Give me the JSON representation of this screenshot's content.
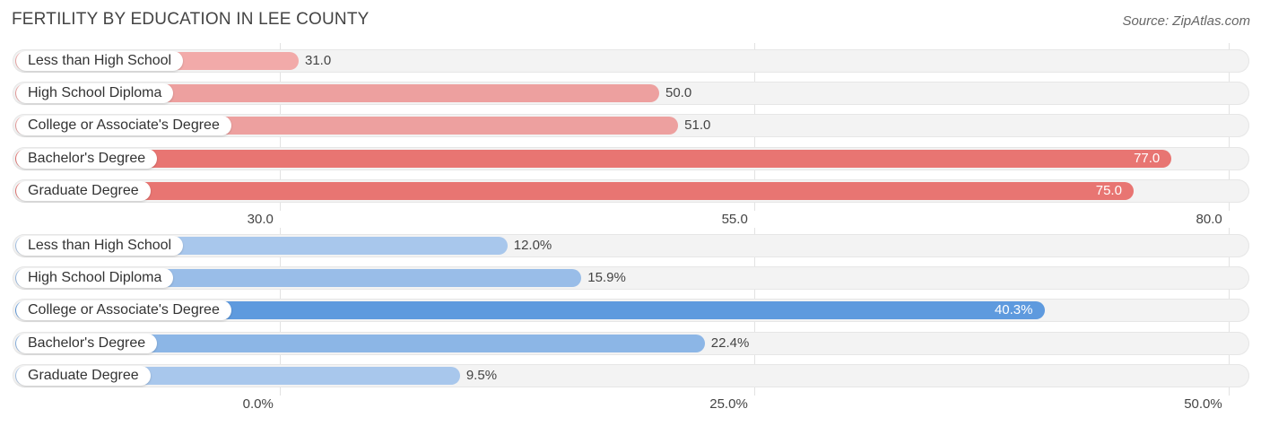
{
  "title": "FERTILITY BY EDUCATION IN LEE COUNTY",
  "source": "Source: ZipAtlas.com",
  "chart_data": [
    {
      "type": "bar",
      "orientation": "horizontal",
      "categories": [
        "Less than High School",
        "High School Diploma",
        "College or Associate's Degree",
        "Bachelor's Degree",
        "Graduate Degree"
      ],
      "values": [
        31.0,
        50.0,
        51.0,
        77.0,
        75.0
      ],
      "value_labels": [
        "31.0",
        "50.0",
        "51.0",
        "77.0",
        "75.0"
      ],
      "xlim": [
        16.3,
        81.1
      ],
      "ticks": [
        30.0,
        55.0,
        80.0
      ],
      "tick_labels": [
        "30.0",
        "55.0",
        "80.0"
      ],
      "colors": [
        "#f2aaa9",
        "#eda09f",
        "#eda09f",
        "#e87572",
        "#e87572"
      ],
      "grid": true
    },
    {
      "type": "bar",
      "orientation": "horizontal",
      "categories": [
        "Less than High School",
        "High School Diploma",
        "College or Associate's Degree",
        "Bachelor's Degree",
        "Graduate Degree"
      ],
      "values": [
        12.0,
        15.9,
        40.3,
        22.4,
        9.5
      ],
      "value_labels": [
        "12.0%",
        "15.9%",
        "40.3%",
        "22.4%",
        "9.5%"
      ],
      "xlim": [
        -13.7,
        51.1
      ],
      "ticks": [
        0.0,
        25.0,
        50.0
      ],
      "tick_labels": [
        "0.0%",
        "25.0%",
        "50.0%"
      ],
      "colors": [
        "#a8c7ec",
        "#99bde8",
        "#5e9ade",
        "#8cb6e6",
        "#a8c7ec"
      ],
      "grid": true
    }
  ]
}
